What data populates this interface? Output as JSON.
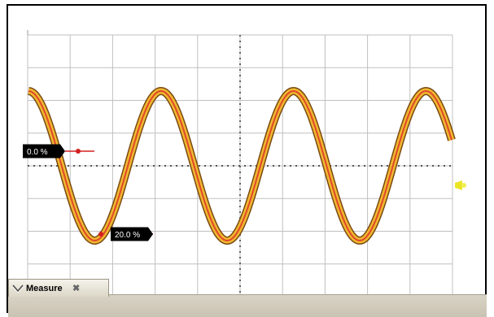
{
  "markers": [
    {
      "text": "0.0 %",
      "level_pct": 0.0
    },
    {
      "text": "20.0 %",
      "level_pct": 20.0
    }
  ],
  "waveform": {
    "type": "sine",
    "cycles_visible": 3.2,
    "colors": {
      "fill": "#f0b830",
      "outline": "#7a4a10",
      "trace": "#e0482a"
    }
  },
  "grid": {
    "divisions_x": 10,
    "divisions_y": 8,
    "color": "#c0c0c0"
  },
  "cursor_markers": {
    "color": "#d42020",
    "label_bg": "#000000"
  },
  "trigger_marker": {
    "color": "#e8e000"
  },
  "measure_panel": {
    "tab_label": "Measure"
  }
}
